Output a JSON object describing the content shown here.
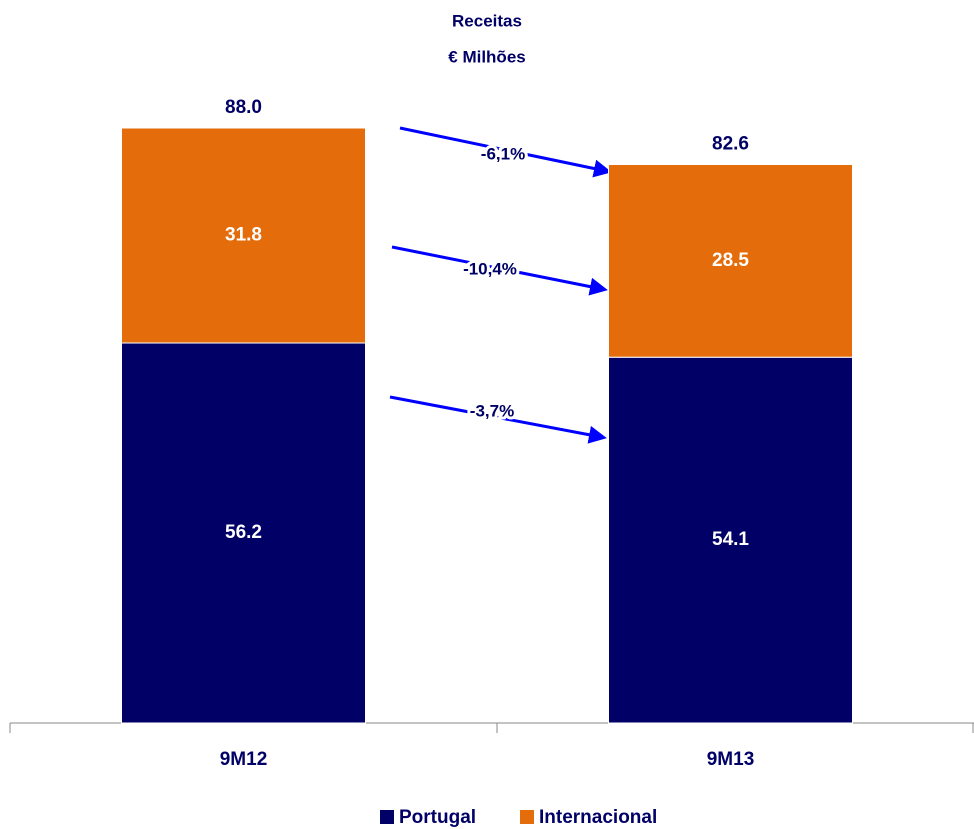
{
  "chart_data": {
    "type": "stacked_bar",
    "title": "Receitas",
    "subtitle": "€ Milhões",
    "categories": [
      "9M12",
      "9M13"
    ],
    "series": [
      {
        "name": "Portugal",
        "color": "#000066",
        "values": [
          56.2,
          54.1
        ]
      },
      {
        "name": "Internacional",
        "color": "#e46c0a",
        "values": [
          31.8,
          28.5
        ]
      }
    ],
    "totals": {
      "values": [
        88,
        82.6
      ],
      "value_labels": [
        "88.0",
        "82.6"
      ]
    },
    "annotations": [
      "-6,1%",
      "-10,4%",
      "-3,7%"
    ],
    "ylim": [
      0,
      88
    ]
  }
}
